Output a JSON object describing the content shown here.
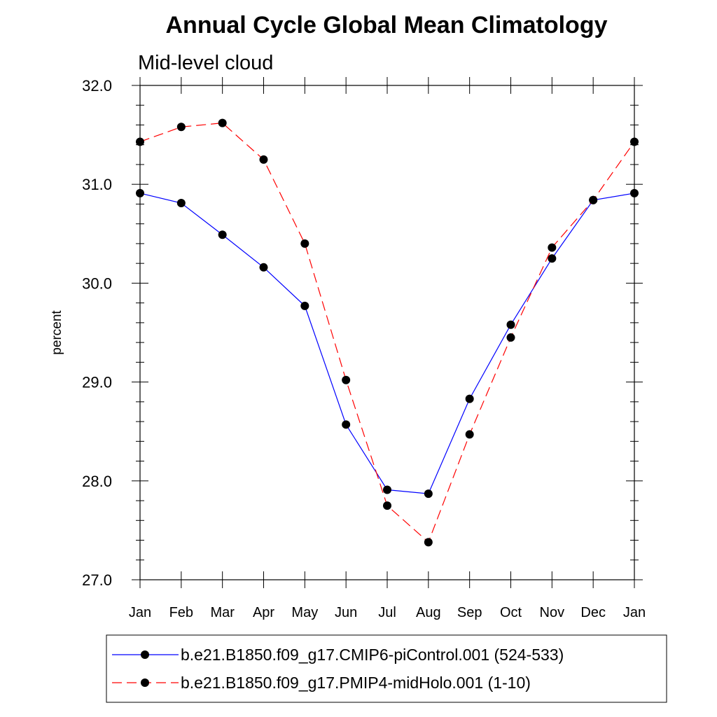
{
  "chart_data": {
    "type": "line",
    "title": "Annual Cycle Global Mean Climatology",
    "subtitle": "Mid-level cloud",
    "xlabel": "",
    "ylabel": "percent",
    "ylim": [
      27.0,
      32.0
    ],
    "yticks": [
      "27.0",
      "28.0",
      "29.0",
      "30.0",
      "31.0",
      "32.0"
    ],
    "categories": [
      "Jan",
      "Feb",
      "Mar",
      "Apr",
      "May",
      "Jun",
      "Jul",
      "Aug",
      "Sep",
      "Oct",
      "Nov",
      "Dec",
      "Jan"
    ],
    "grid": false,
    "legend_position": "bottom",
    "series": [
      {
        "name": "b.e21.B1850.f09_g17.CMIP6-piControl.001 (524-533)",
        "color": "#0000ff",
        "dash": "solid",
        "marker": "filled-circle",
        "values": [
          30.91,
          30.81,
          30.49,
          30.16,
          29.77,
          28.57,
          27.91,
          27.87,
          28.83,
          29.58,
          30.25,
          30.84,
          30.91
        ]
      },
      {
        "name": "b.e21.B1850.f09_g17.PMIP4-midHolo.001 (1-10)",
        "color": "#ff0000",
        "dash": "dashed",
        "marker": "filled-circle",
        "values": [
          31.43,
          31.58,
          31.62,
          31.25,
          30.4,
          29.02,
          27.75,
          27.38,
          28.47,
          29.45,
          30.36,
          30.84,
          31.43
        ]
      }
    ]
  }
}
